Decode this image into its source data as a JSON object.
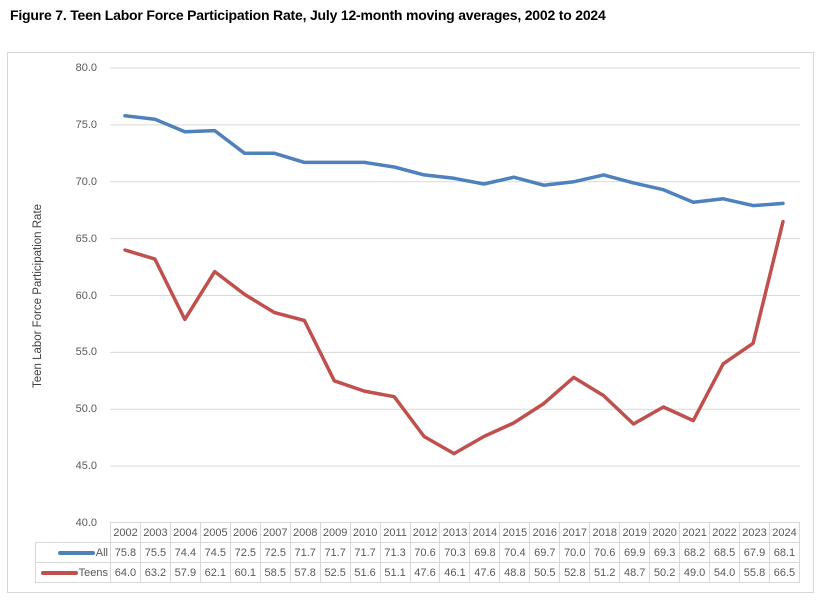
{
  "title": "Figure 7. Teen Labor Force Participation Rate, July 12-month moving averages, 2002 to 2024",
  "chart_data": {
    "type": "line",
    "x": [
      "2002",
      "2003",
      "2004",
      "2005",
      "2006",
      "2007",
      "2008",
      "2009",
      "2010",
      "2011",
      "2012",
      "2013",
      "2014",
      "2015",
      "2016",
      "2017",
      "2018",
      "2019",
      "2020",
      "2021",
      "2022",
      "2023",
      "2024"
    ],
    "series": [
      {
        "name": "All",
        "color": "#4F81BD",
        "values": [
          75.8,
          75.5,
          74.4,
          74.5,
          72.5,
          72.5,
          71.7,
          71.7,
          71.7,
          71.3,
          70.6,
          70.3,
          69.8,
          70.4,
          69.7,
          70.0,
          70.6,
          69.9,
          69.3,
          68.2,
          68.5,
          67.9,
          68.1
        ]
      },
      {
        "name": "Teens",
        "color": "#C0504D",
        "values": [
          64.0,
          63.2,
          57.9,
          62.1,
          60.1,
          58.5,
          57.8,
          52.5,
          51.6,
          51.1,
          47.6,
          46.1,
          47.6,
          48.8,
          50.5,
          52.8,
          51.2,
          48.7,
          50.2,
          49.0,
          54.0,
          55.8,
          66.5
        ]
      }
    ],
    "xlabel": "",
    "ylabel": "Teen Labor Force Participation Rate",
    "ylim": [
      40.0,
      80.0
    ],
    "ytick_step": 5.0,
    "yticks": [
      "80.0",
      "75.0",
      "70.0",
      "65.0",
      "60.0",
      "55.0",
      "50.0",
      "45.0",
      "40.0"
    ],
    "grid": true,
    "gridline_color": "#D9D9D9",
    "text_color": "#595959",
    "legend_position": "data-table-left"
  }
}
